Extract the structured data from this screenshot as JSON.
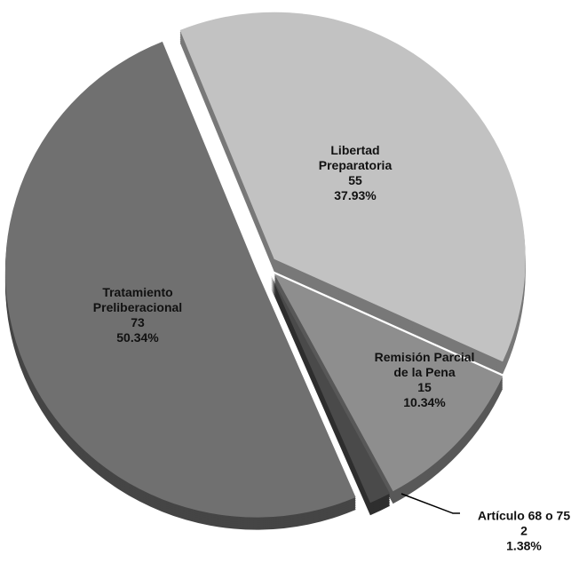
{
  "chart_data": {
    "type": "pie",
    "categories": [
      "Libertad Preparatoria",
      "Remisión Parcial de la Pena",
      "Artículo 68 o 75",
      "Tratamiento Preliberacional"
    ],
    "values": [
      37.93,
      10.34,
      1.38,
      50.34
    ],
    "value_labels": [
      "37.93%",
      "10.34%",
      "1.38%",
      "50.34%"
    ],
    "counts": [
      55,
      15,
      2,
      73
    ],
    "colors": [
      "#c2c2c2",
      "#8e8e8e",
      "#4a4a4a",
      "#707070"
    ]
  }
}
